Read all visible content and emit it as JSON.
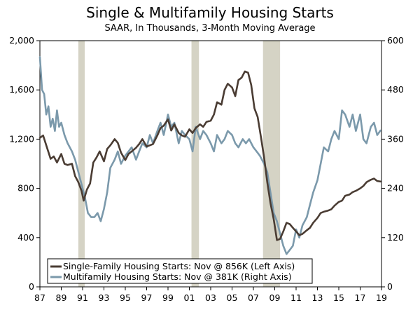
{
  "chart_data": {
    "type": "line",
    "title": "Single & Multifamily Housing Starts",
    "subtitle": "SAAR, In Thousands, 3-Month Moving Average",
    "x_range": [
      1987,
      2019
    ],
    "x_tick_labels": [
      "87",
      "89",
      "91",
      "93",
      "95",
      "97",
      "99",
      "01",
      "03",
      "05",
      "07",
      "09",
      "11",
      "13",
      "15",
      "17",
      "19"
    ],
    "x_tick_years": [
      1987,
      1989,
      1991,
      1993,
      1995,
      1997,
      1999,
      2001,
      2003,
      2005,
      2007,
      2009,
      2011,
      2013,
      2015,
      2017,
      2019
    ],
    "y_left": {
      "range": [
        0,
        2000
      ],
      "ticks": [
        0,
        400,
        800,
        1200,
        1600,
        2000
      ],
      "tick_labels": [
        "0",
        "400",
        "800",
        "1,200",
        "1,600",
        "2,000"
      ]
    },
    "y_right": {
      "range": [
        0,
        600
      ],
      "ticks": [
        0,
        120,
        240,
        360,
        480,
        600
      ],
      "tick_labels": [
        "0",
        "120",
        "240",
        "360",
        "480",
        "600"
      ]
    },
    "recessions": [
      [
        1990.6,
        1991.2
      ],
      [
        2001.2,
        2001.9
      ],
      [
        2007.9,
        2009.5
      ]
    ],
    "series": [
      {
        "name": "Single-Family Housing Starts: Nov @ 856K (Left Axis)",
        "axis": "left",
        "color": "#4a3c33",
        "x": [
          1987.0,
          1987.3,
          1987.6,
          1988.0,
          1988.3,
          1988.6,
          1989.0,
          1989.3,
          1989.6,
          1990.0,
          1990.3,
          1990.6,
          1990.9,
          1991.1,
          1991.4,
          1991.7,
          1992.0,
          1992.3,
          1992.6,
          1993.0,
          1993.3,
          1993.6,
          1994.0,
          1994.3,
          1994.6,
          1995.0,
          1995.3,
          1995.6,
          1996.0,
          1996.3,
          1996.6,
          1997.0,
          1997.3,
          1997.6,
          1998.0,
          1998.3,
          1998.6,
          1999.0,
          1999.3,
          1999.6,
          2000.0,
          2000.3,
          2000.6,
          2001.0,
          2001.3,
          2001.6,
          2002.0,
          2002.3,
          2002.6,
          2003.0,
          2003.3,
          2003.6,
          2004.0,
          2004.3,
          2004.6,
          2005.0,
          2005.3,
          2005.6,
          2005.9,
          2006.2,
          2006.5,
          2006.8,
          2007.1,
          2007.4,
          2007.7,
          2008.0,
          2008.3,
          2008.6,
          2008.9,
          2009.2,
          2009.5,
          2009.8,
          2010.1,
          2010.4,
          2010.7,
          2011.0,
          2011.3,
          2011.6,
          2012.0,
          2012.3,
          2012.6,
          2013.0,
          2013.3,
          2013.6,
          2014.0,
          2014.3,
          2014.6,
          2015.0,
          2015.3,
          2015.6,
          2016.0,
          2016.3,
          2016.6,
          2017.0,
          2017.3,
          2017.6,
          2018.0,
          2018.3,
          2018.6,
          2018.9
        ],
        "values": [
          1210,
          1230,
          1150,
          1040,
          1060,
          1010,
          1080,
          1000,
          990,
          1000,
          900,
          850,
          780,
          700,
          790,
          840,
          1010,
          1050,
          1100,
          1020,
          1120,
          1150,
          1200,
          1170,
          1090,
          1030,
          1080,
          1100,
          1130,
          1160,
          1200,
          1140,
          1150,
          1160,
          1230,
          1290,
          1310,
          1360,
          1270,
          1320,
          1250,
          1230,
          1220,
          1280,
          1250,
          1290,
          1320,
          1300,
          1340,
          1350,
          1400,
          1500,
          1480,
          1600,
          1650,
          1620,
          1550,
          1680,
          1700,
          1750,
          1740,
          1640,
          1450,
          1380,
          1220,
          1050,
          850,
          680,
          550,
          380,
          390,
          450,
          520,
          510,
          480,
          450,
          420,
          430,
          460,
          480,
          520,
          560,
          600,
          610,
          620,
          630,
          660,
          690,
          700,
          740,
          750,
          770,
          780,
          800,
          820,
          850,
          870,
          880,
          860,
          856
        ]
      },
      {
        "name": "Multifamily Housing Starts: Nov @ 381K (Right Axis)",
        "axis": "right",
        "color": "#7b99ab",
        "x": [
          1987.0,
          1987.2,
          1987.4,
          1987.6,
          1987.8,
          1988.0,
          1988.2,
          1988.4,
          1988.6,
          1988.8,
          1989.0,
          1989.3,
          1989.6,
          1990.0,
          1990.3,
          1990.6,
          1990.9,
          1991.2,
          1991.5,
          1991.8,
          1992.1,
          1992.4,
          1992.7,
          1993.0,
          1993.3,
          1993.6,
          1994.0,
          1994.3,
          1994.6,
          1995.0,
          1995.3,
          1995.6,
          1996.0,
          1996.3,
          1996.6,
          1997.0,
          1997.3,
          1997.6,
          1998.0,
          1998.3,
          1998.6,
          1999.0,
          1999.3,
          1999.6,
          2000.0,
          2000.3,
          2000.6,
          2001.0,
          2001.3,
          2001.6,
          2002.0,
          2002.3,
          2002.6,
          2003.0,
          2003.3,
          2003.6,
          2004.0,
          2004.3,
          2004.6,
          2005.0,
          2005.3,
          2005.6,
          2006.0,
          2006.3,
          2006.6,
          2007.0,
          2007.3,
          2007.6,
          2008.0,
          2008.3,
          2008.6,
          2008.9,
          2009.2,
          2009.5,
          2009.8,
          2010.1,
          2010.4,
          2010.7,
          2011.0,
          2011.3,
          2011.6,
          2012.0,
          2012.3,
          2012.6,
          2013.0,
          2013.3,
          2013.6,
          2014.0,
          2014.3,
          2014.6,
          2015.0,
          2015.3,
          2015.6,
          2016.0,
          2016.3,
          2016.6,
          2017.0,
          2017.3,
          2017.6,
          2018.0,
          2018.3,
          2018.6,
          2018.9
        ],
        "values": [
          560,
          480,
          470,
          420,
          440,
          390,
          410,
          380,
          430,
          390,
          400,
          370,
          350,
          330,
          310,
          280,
          250,
          220,
          180,
          170,
          170,
          180,
          160,
          190,
          230,
          290,
          310,
          330,
          300,
          320,
          330,
          340,
          310,
          330,
          350,
          340,
          370,
          350,
          380,
          400,
          370,
          420,
          390,
          400,
          350,
          380,
          370,
          360,
          330,
          390,
          360,
          380,
          370,
          350,
          330,
          370,
          350,
          360,
          380,
          370,
          350,
          340,
          360,
          350,
          360,
          340,
          330,
          320,
          300,
          280,
          230,
          180,
          160,
          130,
          100,
          80,
          90,
          100,
          140,
          120,
          150,
          170,
          200,
          230,
          260,
          300,
          340,
          330,
          360,
          380,
          360,
          430,
          420,
          390,
          420,
          380,
          420,
          360,
          350,
          390,
          400,
          370,
          381
        ]
      }
    ]
  }
}
